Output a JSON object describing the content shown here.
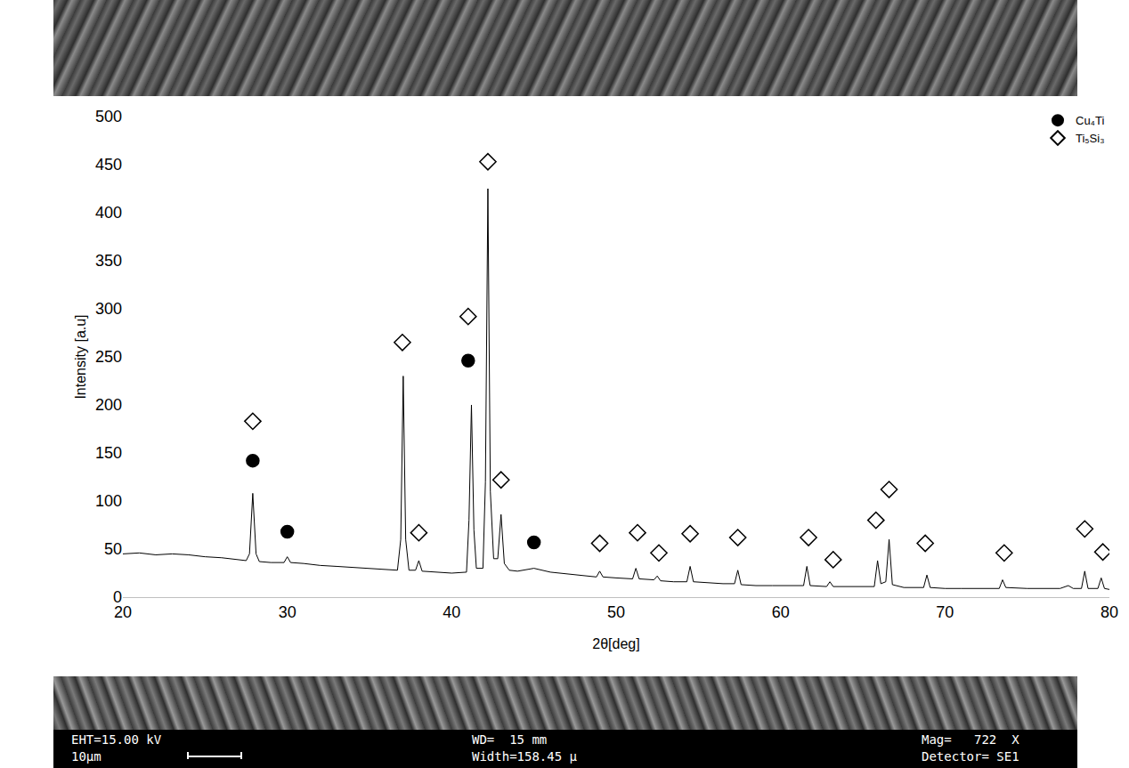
{
  "chart_data": {
    "type": "line",
    "x_label": "2θ[deg]",
    "y_label": "Intensity [a.u]",
    "xlim": [
      20,
      80
    ],
    "xticks": [
      20,
      30,
      40,
      50,
      60,
      70,
      80
    ],
    "ylim": [
      0,
      500
    ],
    "yticks": [
      0,
      50,
      100,
      150,
      200,
      250,
      300,
      350,
      400,
      450,
      500
    ],
    "grid": false,
    "legend": "top right",
    "series": [
      {
        "type": "line",
        "color": "#000000",
        "x": [
          20,
          21,
          22,
          23,
          24,
          25,
          26,
          27,
          27.5,
          27.7,
          27.9,
          28.1,
          28.3,
          29,
          29.8,
          30,
          30.2,
          31,
          32,
          33,
          34,
          35,
          36,
          36.7,
          36.9,
          37.05,
          37.2,
          37.4,
          37.8,
          38.0,
          38.2,
          39,
          40,
          40.9,
          41.05,
          41.2,
          41.35,
          41.5,
          41.9,
          42.05,
          42.2,
          42.35,
          42.55,
          42.8,
          43.0,
          43.2,
          43.5,
          44,
          45,
          46,
          47,
          48,
          48.8,
          49.0,
          49.2,
          50,
          51,
          51.2,
          51.4,
          52.3,
          52.5,
          52.7,
          53.5,
          54.3,
          54.5,
          54.7,
          55.5,
          56.5,
          57.2,
          57.4,
          57.6,
          58.5,
          59.5,
          60.5,
          61.4,
          61.6,
          61.8,
          62.8,
          63.0,
          63.2,
          64,
          65,
          65.7,
          65.9,
          66.1,
          66.4,
          66.6,
          66.8,
          67.5,
          68.7,
          68.9,
          69.1,
          70,
          71,
          72,
          73.3,
          73.5,
          73.7,
          75,
          76,
          77,
          77.5,
          77.8,
          78.3,
          78.5,
          78.7,
          79.3,
          79.5,
          79.7,
          80
        ],
        "values": [
          45,
          46,
          44,
          45,
          44,
          42,
          41,
          39,
          38,
          45,
          108,
          45,
          37,
          36,
          36,
          42,
          36,
          35,
          33,
          32,
          31,
          30,
          29,
          28,
          60,
          230,
          60,
          28,
          28,
          38,
          27,
          26,
          25,
          26,
          80,
          200,
          70,
          30,
          30,
          120,
          425,
          110,
          40,
          40,
          86,
          35,
          28,
          27,
          30,
          26,
          24,
          22,
          21,
          27,
          21,
          20,
          19,
          30,
          19,
          18,
          22,
          17,
          16,
          16,
          32,
          16,
          15,
          14,
          14,
          28,
          13,
          12,
          12,
          12,
          12,
          32,
          12,
          11,
          16,
          11,
          11,
          11,
          11,
          38,
          14,
          16,
          60,
          13,
          10,
          10,
          23,
          10,
          9,
          9,
          9,
          9,
          18,
          10,
          9,
          9,
          9,
          12,
          9,
          9,
          27,
          9,
          9,
          20,
          9,
          8
        ]
      },
      {
        "name": "Cu₄Ti",
        "type": "scatter",
        "marker": "circle",
        "color": "#000000",
        "x": [
          27.9,
          30.0,
          41.0,
          45.0
        ],
        "values": [
          142,
          68,
          246,
          57
        ]
      },
      {
        "name": "Ti₅Si₃",
        "type": "scatter",
        "marker": "diamond-open",
        "color": "#000000",
        "x": [
          27.9,
          37.0,
          38.0,
          41.0,
          42.2,
          43.0,
          49.0,
          51.3,
          52.6,
          54.5,
          57.4,
          61.7,
          63.2,
          65.8,
          66.6,
          68.8,
          73.6,
          78.5,
          79.6
        ],
        "values": [
          183,
          265,
          67,
          292,
          453,
          122,
          56,
          67,
          46,
          66,
          62,
          62,
          39,
          80,
          112,
          56,
          46,
          71,
          47
        ]
      }
    ]
  },
  "sem_info": {
    "row1": [
      "EHT=15.00 kV",
      "WD=  15 mm",
      "Mag=   722  X"
    ],
    "row2": [
      "10µm",
      "Width=158.45 µ",
      "Detector= SE1"
    ]
  }
}
